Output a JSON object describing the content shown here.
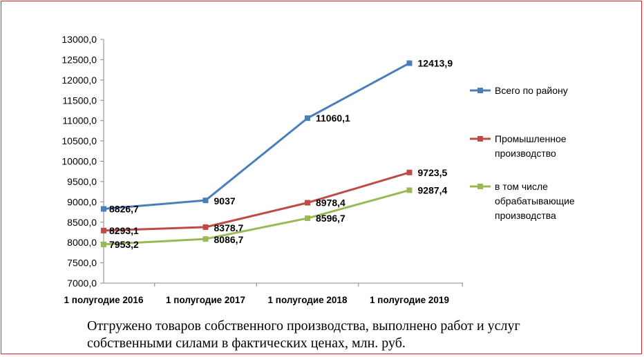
{
  "chart_data": {
    "type": "line",
    "categories": [
      "1 полугодие 2016",
      "1 полугодие 2017",
      "1 полугодие 2018",
      "1 полугодие 2019"
    ],
    "ylim": [
      7000,
      13000
    ],
    "yticks": [
      "7000,0",
      "7500,0",
      "8000,0",
      "8500,0",
      "9000,0",
      "9500,0",
      "10000,0",
      "10500,0",
      "11000,0",
      "11500,0",
      "12000,0",
      "12500,0",
      "13000,0"
    ],
    "grid": false,
    "legend_position": "right",
    "series": [
      {
        "name": "Всего по району",
        "color": "#4a7ebb",
        "values": [
          8826.7,
          9037,
          11060.1,
          12413.9
        ],
        "labels": [
          "8826,7",
          "9037",
          "11060,1",
          "12413,9"
        ],
        "legend_lines": [
          "Всего по району"
        ]
      },
      {
        "name": "Промышленное производство",
        "color": "#be4b48",
        "values": [
          8293.1,
          8378.7,
          8978.4,
          9723.5
        ],
        "labels": [
          "8293,1",
          "8378,7",
          "8978,4",
          "9723,5"
        ],
        "legend_lines": [
          "Промышленное",
          "производство"
        ]
      },
      {
        "name": "в том числе обрабатывающие производства",
        "color": "#98b954",
        "values": [
          7953.2,
          8086.7,
          8596.7,
          9287.4
        ],
        "labels": [
          "7953,2",
          "8086,7",
          "8596,7",
          "9287,4"
        ],
        "legend_lines": [
          "в том числе",
          "обрабатывающие",
          "производства"
        ]
      }
    ]
  },
  "caption": "Отгружено товаров собственного производства, выполнено работ и услуг\n собственными силами в фактических ценах, млн. руб."
}
